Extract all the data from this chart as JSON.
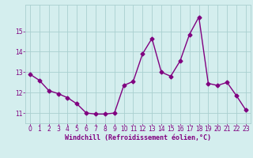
{
  "x": [
    0,
    1,
    2,
    3,
    4,
    5,
    6,
    7,
    8,
    9,
    10,
    11,
    12,
    13,
    14,
    15,
    16,
    17,
    18,
    19,
    20,
    21,
    22,
    23
  ],
  "y": [
    12.9,
    12.6,
    12.1,
    11.95,
    11.75,
    11.45,
    11.0,
    10.95,
    10.95,
    11.0,
    12.35,
    12.55,
    13.9,
    14.65,
    13.0,
    12.8,
    13.55,
    14.85,
    15.7,
    12.45,
    12.35,
    12.5,
    11.85,
    11.15
  ],
  "line_color": "#800080",
  "marker": "D",
  "marker_size": 2.5,
  "line_width": 1.0,
  "bg_color": "#d4eeee",
  "grid_color": "#aad0d0",
  "xlabel": "Windchill (Refroidissement éolien,°C)",
  "xlabel_color": "#800080",
  "xlabel_fontsize": 6.0,
  "tick_color": "#800080",
  "tick_fontsize": 5.5,
  "ylim": [
    10.5,
    16.3
  ],
  "xlim": [
    -0.5,
    23.5
  ],
  "yticks": [
    11,
    12,
    13,
    14,
    15
  ],
  "xticks": [
    0,
    1,
    2,
    3,
    4,
    5,
    6,
    7,
    8,
    9,
    10,
    11,
    12,
    13,
    14,
    15,
    16,
    17,
    18,
    19,
    20,
    21,
    22,
    23
  ]
}
